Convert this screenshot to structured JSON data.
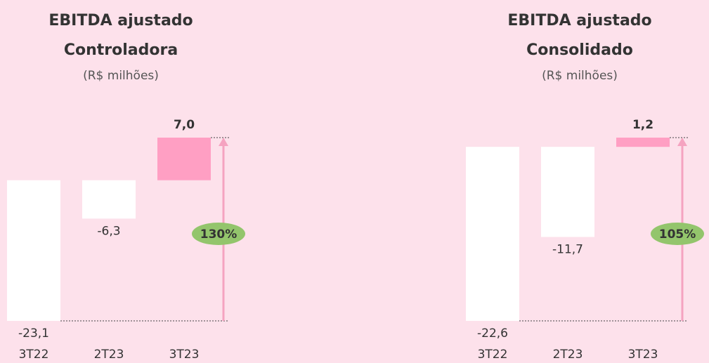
{
  "chart_data": [
    {
      "type": "bar",
      "title": "EBITDA ajustado",
      "title_line2": "Controladora",
      "subtitle": "(R$ milhões)",
      "categories": [
        "3T22",
        "2T23",
        "3T23"
      ],
      "values": [
        -23.1,
        -6.3,
        7.0
      ],
      "value_labels": [
        "-23,1",
        "-6,3",
        "7,0"
      ],
      "colors": [
        "#ffffff",
        "#ffffff",
        "#ff9fc3"
      ],
      "annotation": "130%",
      "annotation_color": "#93c56c",
      "arrow_color": "#f5a3c0"
    },
    {
      "type": "bar",
      "title": "EBITDA ajustado",
      "title_line2": "Consolidado",
      "subtitle": "(R$ milhões)",
      "categories": [
        "3T22",
        "2T23",
        "3T23"
      ],
      "values": [
        -22.6,
        -11.7,
        1.2
      ],
      "value_labels": [
        "-22,6",
        "-11,7",
        "1,2"
      ],
      "colors": [
        "#ffffff",
        "#ffffff",
        "#ff9fc3"
      ],
      "annotation": "105%",
      "annotation_color": "#93c56c",
      "arrow_color": "#f5a3c0"
    }
  ]
}
